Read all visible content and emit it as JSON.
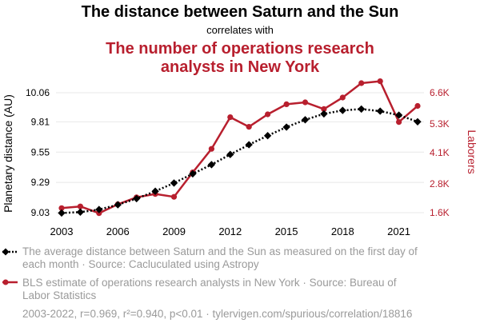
{
  "header": {
    "title": "The distance between Saturn and the Sun",
    "connector": "correlates with",
    "subtitle_line1": "The number of operations research",
    "subtitle_line2": "analysts in New York"
  },
  "chart_data": {
    "type": "line",
    "x": [
      2003,
      2004,
      2005,
      2006,
      2007,
      2008,
      2009,
      2010,
      2011,
      2012,
      2013,
      2014,
      2015,
      2016,
      2017,
      2018,
      2019,
      2020,
      2021,
      2022
    ],
    "x_ticks": [
      "2003",
      "2006",
      "2009",
      "2012",
      "2015",
      "2018",
      "2021"
    ],
    "xlim": [
      2003,
      2022
    ],
    "series": [
      {
        "name": "The average distance between Saturn and the Sun as measured on the first day of each month · Source: Cacluculated using Astropy",
        "axis": "left",
        "color": "#000000",
        "style": "dotted",
        "marker": "diamond",
        "values": [
          9.027,
          9.035,
          9.057,
          9.098,
          9.151,
          9.214,
          9.285,
          9.364,
          9.443,
          9.53,
          9.614,
          9.691,
          9.765,
          9.828,
          9.879,
          9.908,
          9.92,
          9.902,
          9.868,
          9.811
        ]
      },
      {
        "name": "BLS estimate of operations research analysts in New York · Source: Bureau of Labor Statistics",
        "axis": "right",
        "color": "#b81f2e",
        "style": "solid",
        "marker": "circle",
        "values": [
          1790,
          1860,
          1580,
          1950,
          2240,
          2380,
          2260,
          3280,
          4260,
          5580,
          5180,
          5700,
          6120,
          6200,
          5920,
          6400,
          7000,
          7080,
          5380,
          6050
        ]
      }
    ],
    "left_axis": {
      "label": "Planetary distance (AU)",
      "ticks": [
        "9.03",
        "9.29",
        "9.55",
        "9.81",
        "10.06"
      ],
      "tick_values": [
        9.03,
        9.29,
        9.55,
        9.81,
        10.06
      ],
      "ylim": [
        9.03,
        10.06
      ]
    },
    "right_axis": {
      "label": "Laborers",
      "ticks": [
        "1.6K",
        "2.8K",
        "4.1K",
        "5.3K",
        "6.6K"
      ],
      "tick_values": [
        1600,
        2800,
        4100,
        5300,
        6600
      ],
      "ylim": [
        1600,
        6600
      ]
    },
    "grid": "horizontal",
    "legend_position": "bottom",
    "footer": "2003-2022, r=0.969, r²=0.940, p<0.01 · tylervigen.com/spurious/correlation/18816"
  },
  "legend": {
    "saturn_line1": "The average distance between Saturn and the Sun as measured on the first day of",
    "saturn_line2": "each month · Source: Cacluculated using Astropy",
    "bls_line1": "BLS estimate of operations research analysts in New York · Source: Bureau of",
    "bls_line2": "Labor Statistics"
  },
  "colors": {
    "accent_red": "#b81f2e",
    "series_black": "#000000",
    "muted_text": "#9a9a9a",
    "grid": "#e8e8e8"
  }
}
